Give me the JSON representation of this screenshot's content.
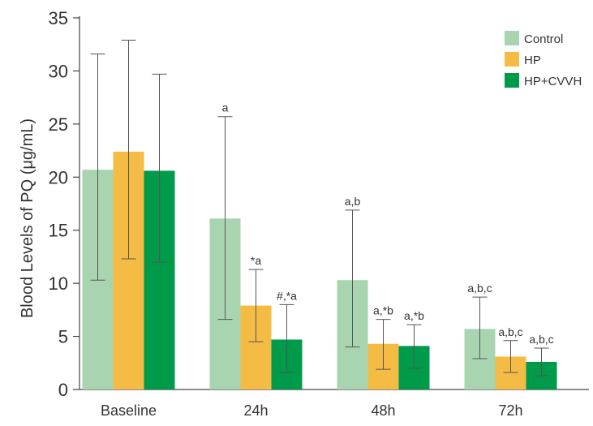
{
  "chart_data": {
    "type": "bar",
    "title": "",
    "xlabel": "",
    "ylabel": "Blood Levels of PQ (μg/mL)",
    "ylim": [
      0,
      35
    ],
    "yticks": [
      0,
      5,
      10,
      15,
      20,
      25,
      30,
      35
    ],
    "grid": false,
    "legend_position": "top-right",
    "categories": [
      "Baseline",
      "24h",
      "48h",
      "72h"
    ],
    "series": [
      {
        "name": "Control",
        "color": "#a8d5b0",
        "values": [
          20.7,
          16.1,
          10.3,
          5.7
        ],
        "err_low": [
          10.3,
          6.6,
          4.0,
          2.9
        ],
        "err_high": [
          31.6,
          25.7,
          16.9,
          8.7
        ],
        "annotations": [
          "",
          "a",
          "a,b",
          "a,b,c"
        ]
      },
      {
        "name": "HP",
        "color": "#f5bc45",
        "values": [
          22.4,
          7.9,
          4.3,
          3.1
        ],
        "err_low": [
          12.3,
          4.5,
          1.9,
          1.6
        ],
        "err_high": [
          32.9,
          11.3,
          6.6,
          4.6
        ],
        "annotations": [
          "",
          "*a",
          "a,*b",
          "a,b,c"
        ]
      },
      {
        "name": "HP+CVVH",
        "color": "#009a4b",
        "values": [
          20.6,
          4.7,
          4.1,
          2.6
        ],
        "err_low": [
          12.0,
          1.6,
          2.0,
          1.3
        ],
        "err_high": [
          29.7,
          8.0,
          6.1,
          3.9
        ],
        "annotations": [
          "",
          "#,*a",
          "a,*b",
          "a,b,c"
        ]
      }
    ]
  }
}
